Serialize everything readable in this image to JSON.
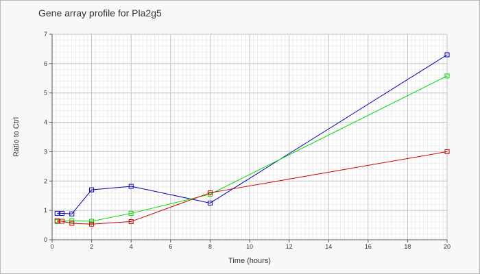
{
  "chart_data": {
    "type": "line",
    "title": "Gene array profile for Pla2g5",
    "xlabel": "Time (hours)",
    "ylabel": "Ratio to Ctrl",
    "xlim": [
      0,
      20
    ],
    "ylim": [
      0,
      7
    ],
    "x_ticks": [
      0,
      2,
      4,
      6,
      8,
      10,
      12,
      14,
      16,
      18,
      20
    ],
    "y_ticks": [
      0,
      1,
      2,
      3,
      4,
      5,
      6,
      7
    ],
    "grid": true,
    "legend": "none",
    "series": [
      {
        "color": "#0000b4",
        "marker": "square",
        "x": [
          0.25,
          0.5,
          1,
          2,
          4,
          8,
          20
        ],
        "values": [
          0.9,
          0.9,
          0.88,
          1.7,
          1.82,
          1.25,
          6.3
        ]
      },
      {
        "color": "#00dc00",
        "marker": "square",
        "x": [
          0.25,
          0.5,
          1,
          2,
          4,
          8,
          20
        ],
        "values": [
          0.62,
          0.63,
          0.65,
          0.63,
          0.9,
          1.55,
          5.58
        ]
      },
      {
        "color": "#cc0000",
        "marker": "square",
        "x": [
          0.25,
          0.5,
          1,
          2,
          4,
          8,
          20
        ],
        "values": [
          0.65,
          0.63,
          0.56,
          0.53,
          0.62,
          1.6,
          3.0
        ]
      }
    ]
  }
}
